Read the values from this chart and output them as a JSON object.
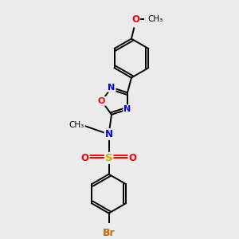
{
  "bg_color": "#ebebeb",
  "bond_color": "#000000",
  "atom_colors": {
    "N": "#0000ff",
    "O": "#ff0000",
    "S": "#ccaa00",
    "Br": "#cc6600",
    "C": "#000000"
  },
  "lw": 1.4
}
